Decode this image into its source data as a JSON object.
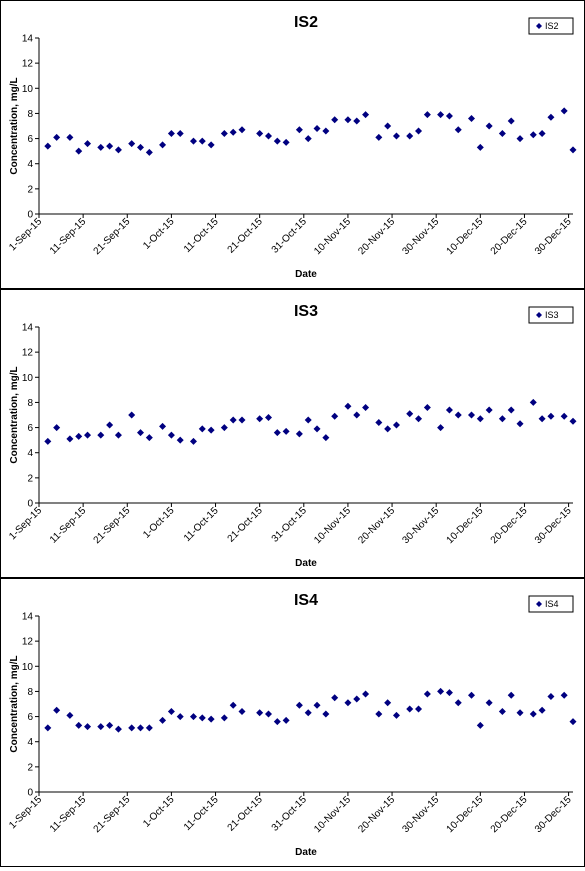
{
  "chart_data": [
    {
      "type": "scatter",
      "title": "IS2",
      "xlabel": "Date",
      "ylabel": "Concentration, mg/L",
      "legend": "upper right",
      "grid": false,
      "xlim": [
        "1-Sep-15",
        "31-Dec-15"
      ],
      "xticks": [
        "1-Sep-15",
        "11-Sep-15",
        "21-Sep-15",
        "1-Oct-15",
        "11-Oct-15",
        "21-Oct-15",
        "31-Oct-15",
        "10-Nov-15",
        "20-Nov-15",
        "30-Nov-15",
        "10-Dec-15",
        "20-Dec-15",
        "30-Dec-15"
      ],
      "ylim": [
        0,
        14
      ],
      "yticks": [
        0,
        2,
        4,
        6,
        8,
        10,
        12,
        14
      ],
      "x": [
        "3-Sep-15",
        "5-Sep-15",
        "8-Sep-15",
        "10-Sep-15",
        "12-Sep-15",
        "15-Sep-15",
        "17-Sep-15",
        "19-Sep-15",
        "22-Sep-15",
        "24-Sep-15",
        "26-Sep-15",
        "29-Sep-15",
        "1-Oct-15",
        "3-Oct-15",
        "6-Oct-15",
        "8-Oct-15",
        "10-Oct-15",
        "13-Oct-15",
        "15-Oct-15",
        "17-Oct-15",
        "21-Oct-15",
        "23-Oct-15",
        "25-Oct-15",
        "27-Oct-15",
        "30-Oct-15",
        "1-Nov-15",
        "3-Nov-15",
        "5-Nov-15",
        "7-Nov-15",
        "10-Nov-15",
        "12-Nov-15",
        "14-Nov-15",
        "17-Nov-15",
        "19-Nov-15",
        "21-Nov-15",
        "24-Nov-15",
        "26-Nov-15",
        "28-Nov-15",
        "1-Dec-15",
        "3-Dec-15",
        "5-Dec-15",
        "8-Dec-15",
        "10-Dec-15",
        "12-Dec-15",
        "15-Dec-15",
        "17-Dec-15",
        "19-Dec-15",
        "22-Dec-15",
        "24-Dec-15",
        "26-Dec-15",
        "29-Dec-15",
        "31-Dec-15"
      ],
      "series": [
        {
          "name": "IS2",
          "color": "#000080",
          "values": [
            5.4,
            6.1,
            6.1,
            5.0,
            5.6,
            5.3,
            5.4,
            5.1,
            5.6,
            5.3,
            4.9,
            5.5,
            6.4,
            6.4,
            5.8,
            5.8,
            5.5,
            6.4,
            6.5,
            6.7,
            6.4,
            6.2,
            5.8,
            5.7,
            6.7,
            6.0,
            6.8,
            6.6,
            7.5,
            7.5,
            7.4,
            7.9,
            6.1,
            7.0,
            6.2,
            6.2,
            6.6,
            7.9,
            7.9,
            7.8,
            6.7,
            7.6,
            5.3,
            7.0,
            6.4,
            7.4,
            6.0,
            6.3,
            6.4,
            7.7,
            8.2,
            5.1
          ]
        }
      ]
    },
    {
      "type": "scatter",
      "title": "IS3",
      "xlabel": "Date",
      "ylabel": "Concentration, mg/L",
      "legend": "upper right",
      "grid": false,
      "xlim": [
        "1-Sep-15",
        "31-Dec-15"
      ],
      "xticks": [
        "1-Sep-15",
        "11-Sep-15",
        "21-Sep-15",
        "1-Oct-15",
        "11-Oct-15",
        "21-Oct-15",
        "31-Oct-15",
        "10-Nov-15",
        "20-Nov-15",
        "30-Nov-15",
        "10-Dec-15",
        "20-Dec-15",
        "30-Dec-15"
      ],
      "ylim": [
        0,
        14
      ],
      "yticks": [
        0,
        2,
        4,
        6,
        8,
        10,
        12,
        14
      ],
      "x": [
        "3-Sep-15",
        "5-Sep-15",
        "8-Sep-15",
        "10-Sep-15",
        "12-Sep-15",
        "15-Sep-15",
        "17-Sep-15",
        "19-Sep-15",
        "22-Sep-15",
        "24-Sep-15",
        "26-Sep-15",
        "29-Sep-15",
        "1-Oct-15",
        "3-Oct-15",
        "6-Oct-15",
        "8-Oct-15",
        "10-Oct-15",
        "13-Oct-15",
        "15-Oct-15",
        "17-Oct-15",
        "21-Oct-15",
        "23-Oct-15",
        "25-Oct-15",
        "27-Oct-15",
        "30-Oct-15",
        "1-Nov-15",
        "3-Nov-15",
        "5-Nov-15",
        "7-Nov-15",
        "10-Nov-15",
        "12-Nov-15",
        "14-Nov-15",
        "17-Nov-15",
        "19-Nov-15",
        "21-Nov-15",
        "24-Nov-15",
        "26-Nov-15",
        "28-Nov-15",
        "1-Dec-15",
        "3-Dec-15",
        "5-Dec-15",
        "8-Dec-15",
        "10-Dec-15",
        "12-Dec-15",
        "15-Dec-15",
        "17-Dec-15",
        "19-Dec-15",
        "22-Dec-15",
        "24-Dec-15",
        "26-Dec-15",
        "29-Dec-15",
        "31-Dec-15"
      ],
      "series": [
        {
          "name": "IS3",
          "color": "#000080",
          "values": [
            4.9,
            6.0,
            5.1,
            5.3,
            5.4,
            5.4,
            6.2,
            5.4,
            7.0,
            5.6,
            5.2,
            6.1,
            5.4,
            5.0,
            4.9,
            5.9,
            5.8,
            6.0,
            6.6,
            6.6,
            6.7,
            6.8,
            5.6,
            5.7,
            5.5,
            6.6,
            5.9,
            5.2,
            6.9,
            7.7,
            7.0,
            7.6,
            6.4,
            5.9,
            6.2,
            7.1,
            6.7,
            7.6,
            6.0,
            7.4,
            7.0,
            7.0,
            6.7,
            7.4,
            6.7,
            7.4,
            6.3,
            8.0,
            6.7,
            6.9,
            6.9,
            6.5
          ]
        }
      ]
    },
    {
      "type": "scatter",
      "title": "IS4",
      "xlabel": "Date",
      "ylabel": "Concentration, mg/L",
      "legend": "upper right",
      "grid": false,
      "xlim": [
        "1-Sep-15",
        "31-Dec-15"
      ],
      "xticks": [
        "1-Sep-15",
        "11-Sep-15",
        "21-Sep-15",
        "1-Oct-15",
        "11-Oct-15",
        "21-Oct-15",
        "31-Oct-15",
        "10-Nov-15",
        "20-Nov-15",
        "30-Nov-15",
        "10-Dec-15",
        "20-Dec-15",
        "30-Dec-15"
      ],
      "ylim": [
        0,
        14
      ],
      "yticks": [
        0,
        2,
        4,
        6,
        8,
        10,
        12,
        14
      ],
      "x": [
        "3-Sep-15",
        "5-Sep-15",
        "8-Sep-15",
        "10-Sep-15",
        "12-Sep-15",
        "15-Sep-15",
        "17-Sep-15",
        "19-Sep-15",
        "22-Sep-15",
        "24-Sep-15",
        "26-Sep-15",
        "29-Sep-15",
        "1-Oct-15",
        "3-Oct-15",
        "6-Oct-15",
        "8-Oct-15",
        "10-Oct-15",
        "13-Oct-15",
        "15-Oct-15",
        "17-Oct-15",
        "21-Oct-15",
        "23-Oct-15",
        "25-Oct-15",
        "27-Oct-15",
        "30-Oct-15",
        "1-Nov-15",
        "3-Nov-15",
        "5-Nov-15",
        "7-Nov-15",
        "10-Nov-15",
        "12-Nov-15",
        "14-Nov-15",
        "17-Nov-15",
        "19-Nov-15",
        "21-Nov-15",
        "24-Nov-15",
        "26-Nov-15",
        "28-Nov-15",
        "1-Dec-15",
        "3-Dec-15",
        "5-Dec-15",
        "8-Dec-15",
        "10-Dec-15",
        "12-Dec-15",
        "15-Dec-15",
        "17-Dec-15",
        "19-Dec-15",
        "22-Dec-15",
        "24-Dec-15",
        "26-Dec-15",
        "29-Dec-15",
        "31-Dec-15"
      ],
      "series": [
        {
          "name": "IS4",
          "color": "#000080",
          "values": [
            5.1,
            6.5,
            6.1,
            5.3,
            5.2,
            5.2,
            5.3,
            5.0,
            5.1,
            5.1,
            5.1,
            5.7,
            6.4,
            6.0,
            6.0,
            5.9,
            5.8,
            5.9,
            6.9,
            6.4,
            6.3,
            6.2,
            5.6,
            5.7,
            6.9,
            6.3,
            6.9,
            6.2,
            7.5,
            7.1,
            7.4,
            7.8,
            6.2,
            7.1,
            6.1,
            6.6,
            6.6,
            7.8,
            8.0,
            7.9,
            7.1,
            7.7,
            5.3,
            7.1,
            6.4,
            7.7,
            6.3,
            6.2,
            6.5,
            7.6,
            7.7,
            5.6
          ]
        }
      ]
    }
  ]
}
